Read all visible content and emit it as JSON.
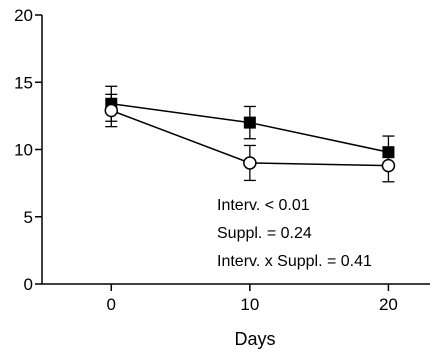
{
  "chart_data": {
    "type": "line",
    "xlabel": "Days",
    "ylabel": "",
    "xlim": [
      -5,
      23
    ],
    "ylim": [
      0,
      20
    ],
    "xticks": [
      0,
      10,
      20
    ],
    "yticks": [
      0,
      5,
      10,
      15,
      20
    ],
    "series": [
      {
        "marker": "filled-square",
        "x": [
          0,
          10,
          20
        ],
        "y": [
          13.4,
          12.0,
          9.8
        ],
        "err": [
          1.3,
          1.2,
          1.2
        ]
      },
      {
        "marker": "open-circle",
        "x": [
          0,
          10,
          20
        ],
        "y": [
          12.9,
          9.0,
          8.8
        ],
        "err": [
          1.2,
          1.3,
          1.2
        ]
      }
    ],
    "annotations": [
      "Interv. < 0.01",
      "Suppl. = 0.24",
      "Interv. x Suppl. = 0.41"
    ],
    "grid": false,
    "legend": "none"
  }
}
